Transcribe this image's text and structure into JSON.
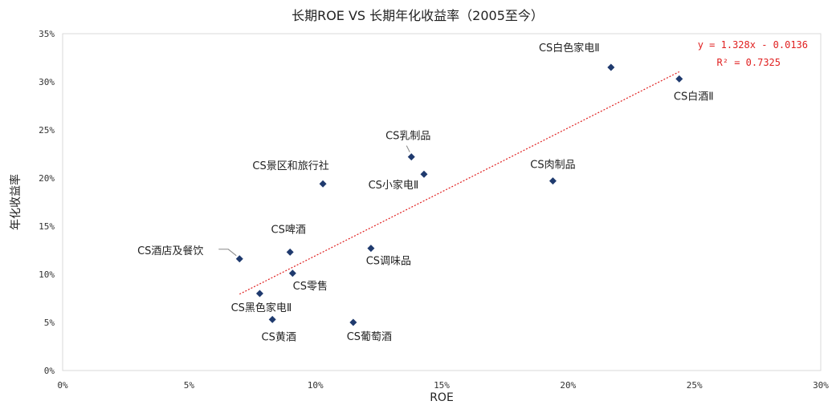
{
  "chart_data": {
    "type": "scatter",
    "title": "长期ROE VS 长期年化收益率（2005至今）",
    "xlabel": "ROE",
    "ylabel": "年化收益率",
    "xlim": [
      0,
      0.3
    ],
    "ylim": [
      0,
      0.35
    ],
    "x_ticks": [
      "0%",
      "5%",
      "10%",
      "15%",
      "20%",
      "25%",
      "30%"
    ],
    "y_ticks": [
      "0%",
      "5%",
      "10%",
      "15%",
      "20%",
      "25%",
      "30%",
      "35%"
    ],
    "points": [
      {
        "label": "CS白色家电Ⅱ",
        "x": 0.217,
        "y": 0.315
      },
      {
        "label": "CS白酒Ⅱ",
        "x": 0.244,
        "y": 0.303
      },
      {
        "label": "CS乳制品",
        "x": 0.138,
        "y": 0.222
      },
      {
        "label": "CS小家电Ⅱ",
        "x": 0.143,
        "y": 0.204
      },
      {
        "label": "CS景区和旅行社",
        "x": 0.103,
        "y": 0.194
      },
      {
        "label": "CS肉制品",
        "x": 0.194,
        "y": 0.197
      },
      {
        "label": "CS酒店及餐饮",
        "x": 0.07,
        "y": 0.116
      },
      {
        "label": "CS啤酒",
        "x": 0.09,
        "y": 0.123
      },
      {
        "label": "CS调味品",
        "x": 0.122,
        "y": 0.127
      },
      {
        "label": "CS零售",
        "x": 0.091,
        "y": 0.101
      },
      {
        "label": "CS黑色家电Ⅱ",
        "x": 0.078,
        "y": 0.08
      },
      {
        "label": "CS黄酒",
        "x": 0.083,
        "y": 0.053
      },
      {
        "label": "CS葡萄酒",
        "x": 0.115,
        "y": 0.05
      }
    ],
    "trendline": {
      "slope": 1.328,
      "intercept": -0.0136,
      "equation": "y = 1.328x - 0.0136",
      "r2": "R² = 0.7325",
      "x_range": [
        0.07,
        0.244
      ],
      "color": "#e02020",
      "style": "dotted"
    },
    "marker_color": "#1f3a6e",
    "grid": false,
    "legend": "none"
  }
}
